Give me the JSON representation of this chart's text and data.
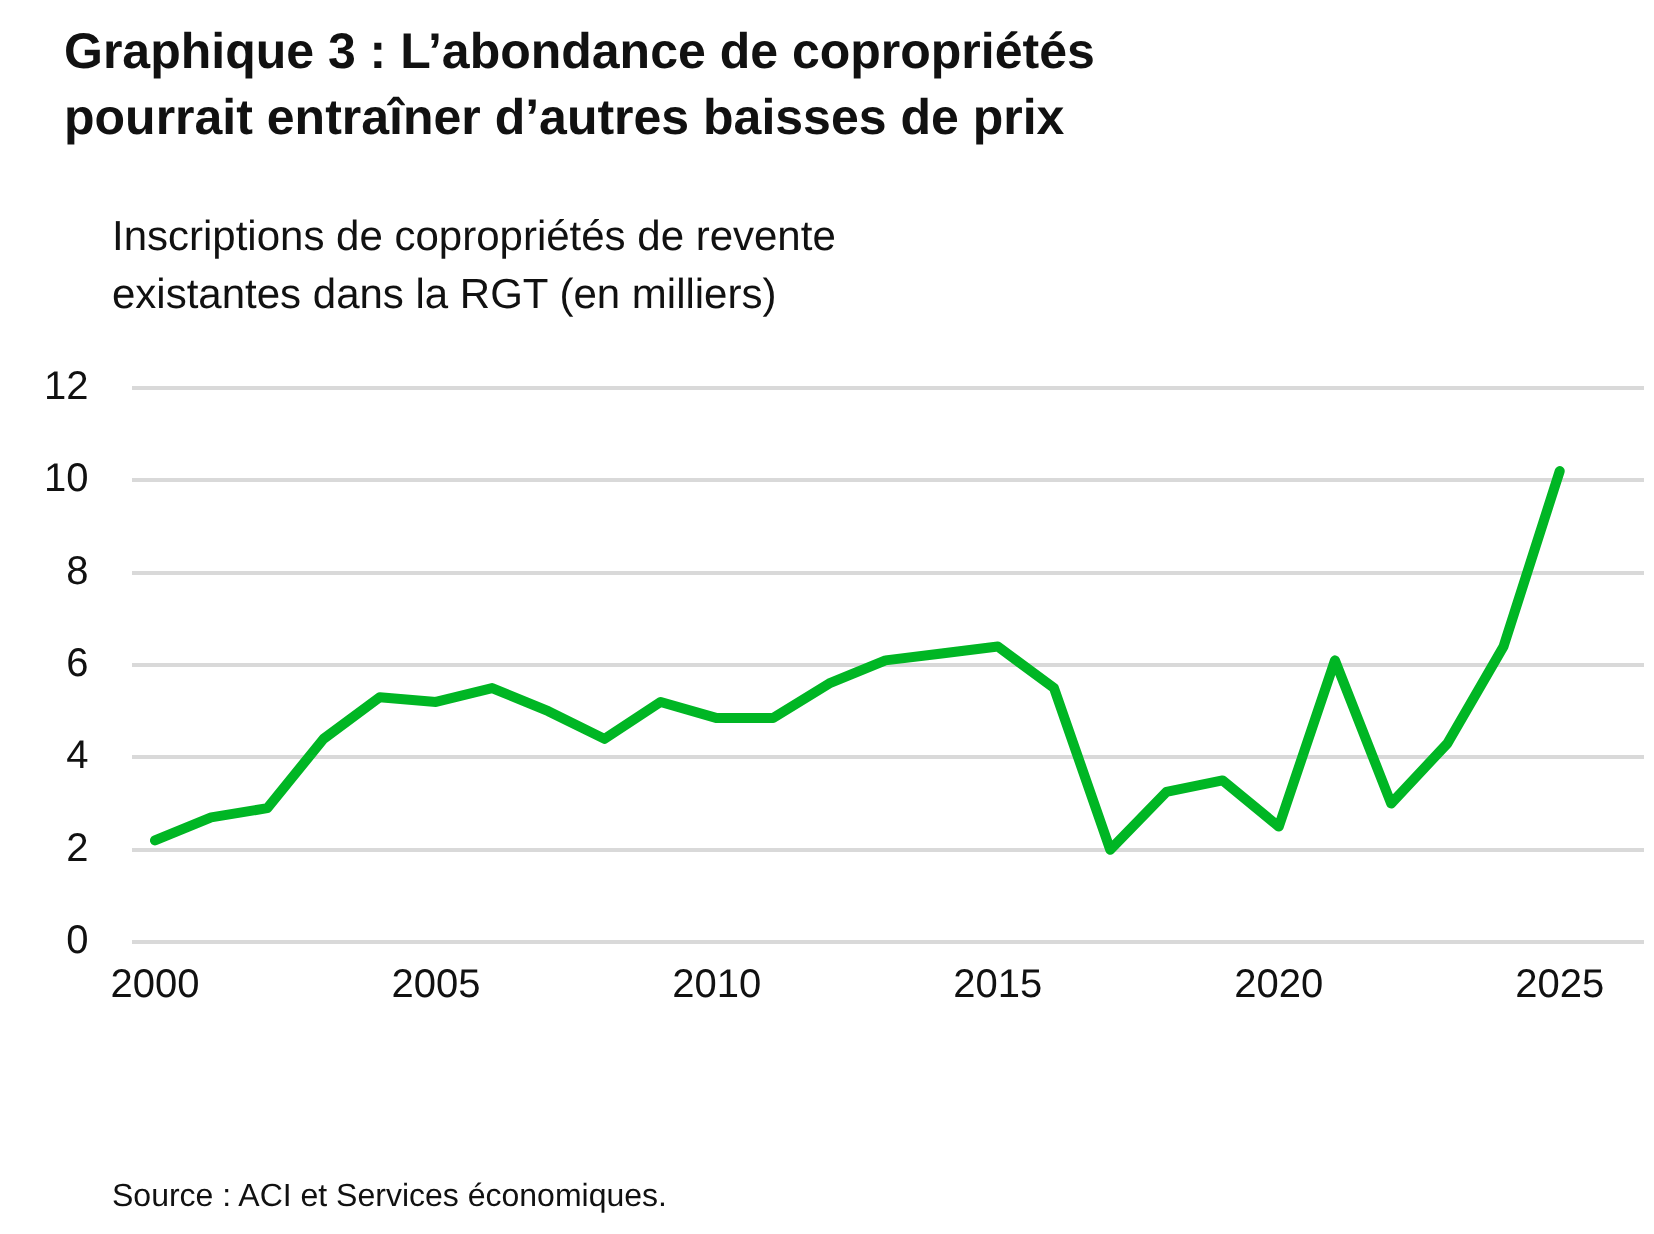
{
  "chart_data": {
    "type": "line",
    "title": "Graphique 3 : L’abondance de copropriétés pourrait entraîner d’autres baisses de prix",
    "ylabel": "Inscriptions de copropriétés de revente existantes dans la RGT (en milliers)",
    "annotations": [
      "Source : ACI et Services économiques."
    ],
    "x": [
      2000,
      2001,
      2002,
      2003,
      2004,
      2005,
      2006,
      2007,
      2008,
      2009,
      2010,
      2011,
      2012,
      2013,
      2014,
      2015,
      2016,
      2017,
      2018,
      2019,
      2020,
      2021,
      2022,
      2023,
      2024,
      2025
    ],
    "series": [
      {
        "color": "#00b624",
        "values": [
          2.2,
          2.7,
          2.9,
          4.4,
          5.3,
          5.2,
          5.5,
          5.0,
          4.4,
          5.2,
          4.85,
          4.85,
          5.6,
          6.1,
          6.25,
          6.4,
          5.5,
          2.0,
          3.25,
          3.5,
          2.5,
          6.1,
          3.0,
          4.3,
          6.4,
          10.2
        ]
      }
    ],
    "xlim": [
      1999.6,
      2026.5
    ],
    "xticks": [
      2000,
      2005,
      2010,
      2015,
      2020,
      2025
    ],
    "ylim": [
      0,
      12
    ],
    "yticks": [
      0,
      2,
      4,
      6,
      8,
      10,
      12
    ],
    "grid": "y",
    "legend": false,
    "marker": "none",
    "line_style": "solid"
  }
}
